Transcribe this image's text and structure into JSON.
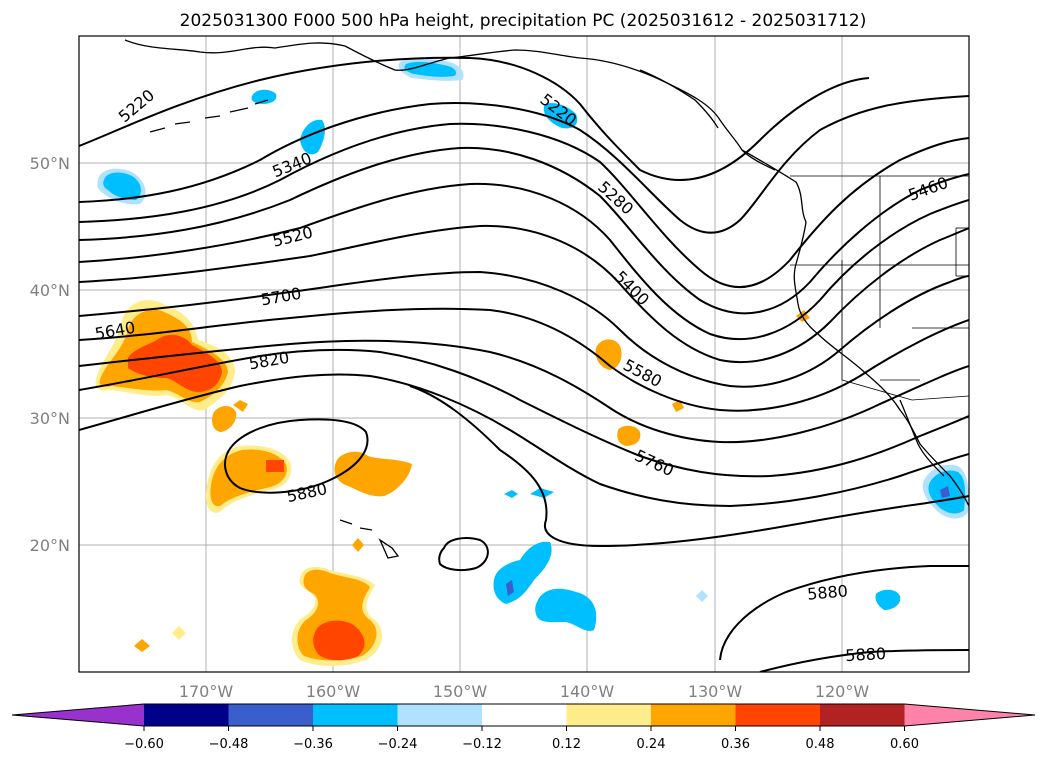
{
  "title": "2025031300 F000 500 hPa height, precipitation PC (2025031612 - 2025031712)",
  "lat_labels": [
    "50°N",
    "40°N",
    "30°N",
    "20°N"
  ],
  "lon_labels": [
    "170°W",
    "160°W",
    "150°W",
    "140°W",
    "130°W",
    "120°W"
  ],
  "contour_labels": [
    {
      "text": "5220"
    },
    {
      "text": "5220"
    },
    {
      "text": "5340"
    },
    {
      "text": "5280"
    },
    {
      "text": "5460"
    },
    {
      "text": "5520"
    },
    {
      "text": "5400"
    },
    {
      "text": "5700"
    },
    {
      "text": "5640"
    },
    {
      "text": "5580"
    },
    {
      "text": "5820"
    },
    {
      "text": "5760"
    },
    {
      "text": "5880"
    },
    {
      "text": "5880"
    },
    {
      "text": "5880"
    }
  ],
  "colorbar": {
    "tick_labels": [
      "−0.60",
      "−0.48",
      "−0.36",
      "−0.24",
      "−0.12",
      "0.12",
      "0.24",
      "0.36",
      "0.48",
      "0.60"
    ],
    "colors": [
      "#9932cc",
      "#00008b",
      "#3a5fcd",
      "#00bfff",
      "#b0e2ff",
      "#ffffff",
      "#ffec8b",
      "#ffa500",
      "#ff4500",
      "#b22222",
      "#ff82ab"
    ]
  },
  "map_extent": {
    "lon_min": -180,
    "lon_max": -110,
    "lat_min": 10,
    "lat_max": 60
  },
  "colors": {
    "gridline": "#b0b0b0",
    "contour": "#000000",
    "coast": "#000000"
  }
}
